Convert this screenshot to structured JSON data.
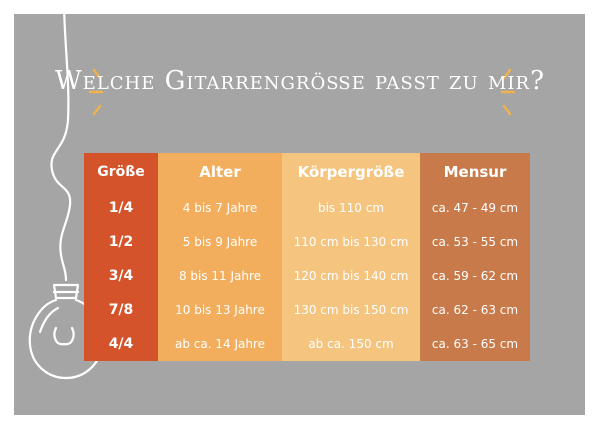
{
  "title": "Welche Gitarrengröße passt zu mir?",
  "colors": {
    "background": "#a5a5a5",
    "col_groesse": "#d5532a",
    "col_alter": "#f3ae5d",
    "col_koerper": "#f5c47f",
    "col_mensur": "#c97a4a",
    "accent": "#f0b24c"
  },
  "table": {
    "headers": [
      "Größe",
      "Alter",
      "Körpergröße",
      "Mensur"
    ],
    "rows": [
      [
        "1/4",
        "4 bis 7 Jahre",
        "bis 110 cm",
        "ca. 47 - 49 cm"
      ],
      [
        "1/2",
        "5 bis 9 Jahre",
        "110 cm bis 130 cm",
        "ca. 53 - 55 cm"
      ],
      [
        "3/4",
        "8 bis 11 Jahre",
        "120 cm bis 140 cm",
        "ca. 59 - 62 cm"
      ],
      [
        "7/8",
        "10 bis 13 Jahre",
        "130 cm bis 150 cm",
        "ca. 62 - 63 cm"
      ],
      [
        "4/4",
        "ab ca. 14 Jahre",
        "ab ca. 150 cm",
        "ca. 63 - 65 cm"
      ]
    ]
  },
  "icons": [
    "light-bulb-icon",
    "spark-icon"
  ]
}
